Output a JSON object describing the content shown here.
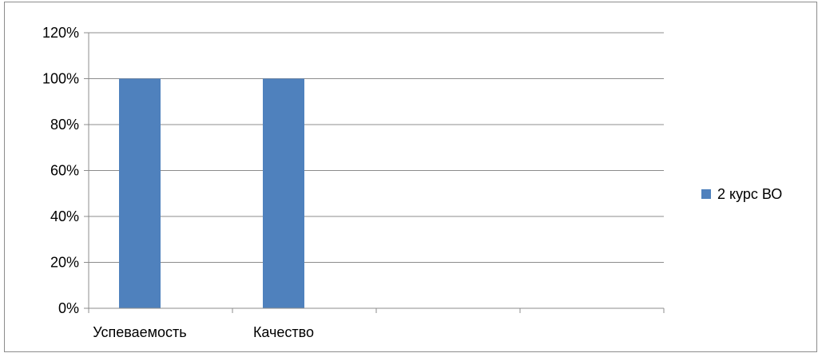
{
  "chart_data": {
    "type": "bar",
    "categories": [
      "Успеваемость",
      "Качество",
      "",
      ""
    ],
    "series": [
      {
        "name": "2 курс ВО",
        "values": [
          100,
          100,
          null,
          null
        ],
        "color": "#4f81bd"
      }
    ],
    "ylim": [
      0,
      120
    ],
    "yticks": [
      0,
      20,
      40,
      60,
      80,
      100,
      120
    ],
    "ytick_format": "percent",
    "grid": true,
    "legend": "right",
    "title": "",
    "xlabel": "",
    "ylabel": ""
  }
}
